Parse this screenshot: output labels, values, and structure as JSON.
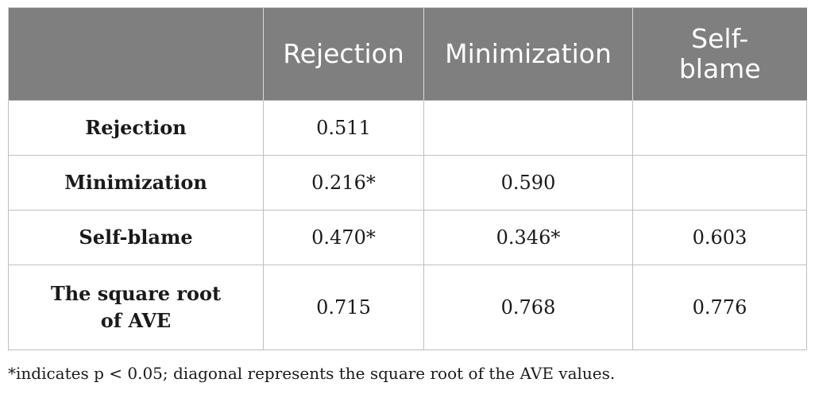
{
  "table": {
    "header": [
      "",
      "Rejection",
      "Minimization",
      "Self-blame"
    ],
    "rows": [
      {
        "label": "Rejection",
        "values": [
          "0.511",
          "",
          ""
        ]
      },
      {
        "label": "Minimization",
        "values": [
          "0.216*",
          "0.590",
          ""
        ]
      },
      {
        "label": "Self-blame",
        "values": [
          "0.470*",
          "0.346*",
          "0.603"
        ]
      },
      {
        "label": "The square root of AVE",
        "values": [
          "0.715",
          "0.768",
          "0.776"
        ]
      }
    ]
  },
  "note": "*indicates p < 0.05; diagonal represents the square root of the AVE values.",
  "colors": {
    "header_bg": "#7f7f7f",
    "header_text": "#ffffff",
    "grid": "#bfbfbf"
  }
}
